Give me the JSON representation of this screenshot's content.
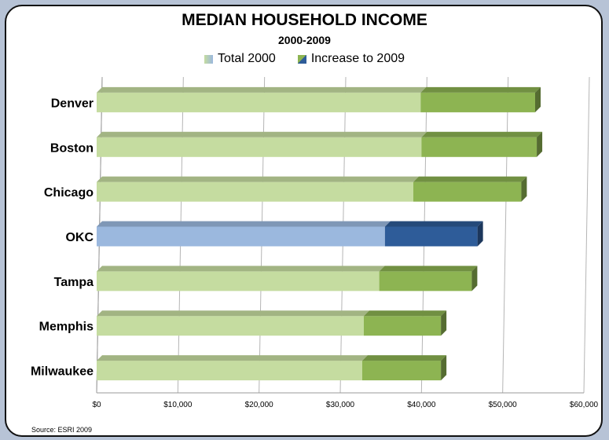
{
  "chart_data": {
    "type": "bar",
    "orientation": "horizontal",
    "stacked": true,
    "title": "MEDIAN HOUSEHOLD INCOME",
    "subtitle": "2000-2009",
    "categories": [
      "Denver",
      "Boston",
      "Chicago",
      "OKC",
      "Tampa",
      "Memphis",
      "Milwaukee"
    ],
    "series": [
      {
        "name": "Total 2000",
        "values": [
          39900,
          40000,
          39000,
          35500,
          34800,
          32900,
          32700
        ]
      },
      {
        "name": "Increase to 2009",
        "values": [
          14100,
          14200,
          13300,
          11400,
          11400,
          9500,
          9700
        ]
      }
    ],
    "highlight_category": "OKC",
    "xlim": [
      0,
      60000
    ],
    "x_ticks": [
      "$0",
      "$10,000",
      "$20,000",
      "$30,000",
      "$40,000",
      "$50,000",
      "$60,000"
    ],
    "legend_position": "top",
    "grid": true,
    "colors": {
      "total": "#c5dca0",
      "increase": "#8db452",
      "highlight_total": "#9bb8de",
      "highlight_increase": "#2e5c99"
    }
  },
  "source": "Source:  ESRI 2009"
}
